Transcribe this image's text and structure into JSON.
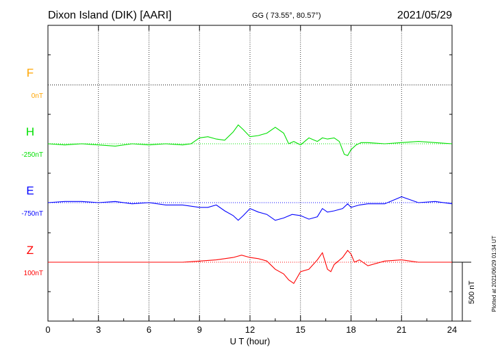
{
  "header": {
    "station": "Dixon Island (DIK)  [AARI]",
    "coords": "GG ( 73.55°,  80.57°)",
    "date": "2021/05/29"
  },
  "footer": {
    "plotted": "Plotted at 2021/06/29 01:34 UT"
  },
  "chart_data": {
    "type": "line",
    "xlabel": "U T (hour)",
    "xlim": [
      0,
      24
    ],
    "xticks": [
      "0",
      "3",
      "6",
      "9",
      "12",
      "15",
      "18",
      "21",
      "24"
    ],
    "scale_bar_label": "500 nT",
    "grid": true,
    "series": [
      {
        "name": "F",
        "baseline_label": "0nT",
        "color": "#ffa500",
        "x": [],
        "y": []
      },
      {
        "name": "H",
        "baseline_label": "-250nT",
        "color": "#00e000",
        "x": [
          0,
          1,
          2,
          3,
          4,
          5,
          6,
          7,
          8,
          8.5,
          9,
          9.5,
          10,
          10.5,
          11,
          11.3,
          11.6,
          12,
          12.5,
          13,
          13.5,
          14,
          14.3,
          14.6,
          15,
          15.5,
          16,
          16.3,
          16.6,
          17,
          17.3,
          17.6,
          17.8,
          18,
          18.3,
          18.6,
          19,
          20,
          21,
          22,
          23,
          24
        ],
        "y": [
          -250,
          -260,
          -250,
          -260,
          -270,
          -250,
          -260,
          -250,
          -260,
          -250,
          -200,
          -190,
          -210,
          -220,
          -150,
          -90,
          -130,
          -190,
          -180,
          -160,
          -110,
          -160,
          -250,
          -230,
          -260,
          -200,
          -230,
          -200,
          -210,
          -200,
          -230,
          -340,
          -350,
          -300,
          -260,
          -240,
          -240,
          -250,
          -240,
          -230,
          -240,
          -250
        ]
      },
      {
        "name": "E",
        "baseline_label": "-750nT",
        "color": "#0000ff",
        "x": [
          0,
          1,
          2,
          3,
          4,
          5,
          6,
          7,
          8,
          9,
          9.5,
          10,
          10.5,
          11,
          11.3,
          11.6,
          12,
          12.5,
          13,
          13.5,
          14,
          14.5,
          15,
          15.5,
          16,
          16.3,
          16.6,
          17,
          17.5,
          17.8,
          18,
          18.5,
          19,
          20,
          21,
          22,
          23,
          24
        ],
        "y": [
          -750,
          -740,
          -740,
          -750,
          -740,
          -760,
          -750,
          -770,
          -770,
          -790,
          -790,
          -770,
          -820,
          -860,
          -900,
          -860,
          -800,
          -830,
          -850,
          -900,
          -880,
          -850,
          -860,
          -890,
          -870,
          -800,
          -830,
          -820,
          -800,
          -760,
          -790,
          -770,
          -760,
          -760,
          -700,
          -750,
          -740,
          -760
        ]
      },
      {
        "name": "Z",
        "baseline_label": "100nT",
        "color": "#ff0000",
        "x": [
          0,
          2,
          4,
          6,
          8,
          9,
          10,
          11,
          11.5,
          12,
          12.5,
          13,
          13.5,
          14,
          14.3,
          14.6,
          15,
          15.5,
          16,
          16.3,
          16.6,
          16.8,
          17,
          17.5,
          17.8,
          18,
          18.2,
          18.5,
          19,
          20,
          21,
          22,
          23,
          24
        ],
        "y": [
          100,
          100,
          100,
          100,
          100,
          110,
          120,
          140,
          160,
          140,
          130,
          110,
          40,
          0,
          -50,
          -80,
          20,
          40,
          120,
          180,
          40,
          20,
          80,
          140,
          200,
          170,
          100,
          120,
          70,
          110,
          120,
          100,
          100,
          100
        ]
      }
    ]
  }
}
